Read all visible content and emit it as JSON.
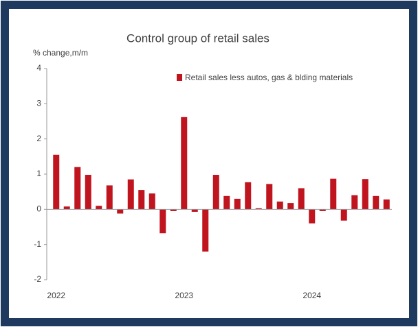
{
  "chart_data": {
    "type": "bar",
    "title": "Control group of retail sales",
    "y_axis_label": "% change,m/m",
    "categories": [
      "2022",
      null,
      null,
      null,
      null,
      null,
      null,
      null,
      null,
      null,
      null,
      null,
      "2023",
      null,
      null,
      null,
      null,
      null,
      null,
      null,
      null,
      null,
      null,
      null,
      "2024",
      null,
      null,
      null,
      null,
      null,
      null,
      null
    ],
    "series": [
      {
        "name": "Retail sales less autos, gas & blding materials",
        "color": "#c0141f",
        "values": [
          1.55,
          0.08,
          1.2,
          0.98,
          0.1,
          0.68,
          -0.12,
          0.85,
          0.55,
          0.45,
          -0.68,
          -0.05,
          2.62,
          -0.07,
          -1.2,
          0.98,
          0.38,
          0.3,
          0.77,
          0.03,
          0.72,
          0.22,
          0.18,
          0.6,
          -0.4,
          -0.05,
          0.87,
          -0.32,
          0.4,
          0.86,
          0.38,
          0.28
        ]
      }
    ],
    "ylim": [
      -2,
      4
    ],
    "yticks": [
      -2,
      -1,
      0,
      1,
      2,
      3,
      4
    ],
    "legend": "upper right"
  }
}
